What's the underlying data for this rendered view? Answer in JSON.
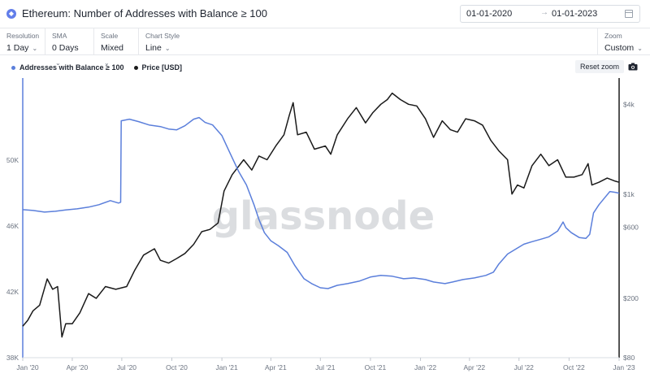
{
  "header": {
    "icon": "ethereum-icon",
    "title": "Ethereum: Number of Addresses with Balance ≥ 100",
    "date_start": "01-01-2020",
    "date_arrow": "→",
    "date_end": "01-01-2023"
  },
  "toolbar": {
    "resolution": {
      "label": "Resolution",
      "value": "1 Day"
    },
    "sma": {
      "label": "SMA",
      "value": "0 Days"
    },
    "scale": {
      "label": "Scale",
      "value": "Mixed"
    },
    "chart_style": {
      "label": "Chart Style",
      "value": "Line"
    },
    "zoom": {
      "label": "Zoom",
      "value": "Custom"
    }
  },
  "legend": {
    "addresses": "Addresses with Balance ≥ 100",
    "price": "Price [USD]"
  },
  "reset_zoom": "Reset zoom",
  "watermark": "glassnode",
  "colors": {
    "addresses": "#5b7fdb",
    "price": "#1a1a1a"
  },
  "chart_data": {
    "type": "line",
    "x_ticks": [
      "Jan '20",
      "Apr '20",
      "Jul '20",
      "Oct '20",
      "Jan '21",
      "Apr '21",
      "Jul '21",
      "Oct '21",
      "Jan '22",
      "Apr '22",
      "Jul '22",
      "Oct '22",
      "Jan '23"
    ],
    "x_range": [
      "2020-01-01",
      "2023-01-01"
    ],
    "y_left": {
      "scale": "linear",
      "range": [
        38000,
        55000
      ],
      "ticks": [
        "38K",
        "42K",
        "46K",
        "50K"
      ],
      "tick_values": [
        38000,
        42000,
        46000,
        50000
      ]
    },
    "y_right": {
      "scale": "log",
      "range": [
        80,
        6000
      ],
      "ticks": [
        "$80",
        "$200",
        "$600",
        "$1k",
        "$4k"
      ],
      "tick_values": [
        80,
        200,
        600,
        1000,
        4000
      ]
    },
    "series": [
      {
        "name": "Addresses with Balance ≥ 100",
        "axis": "left",
        "points": [
          [
            "2020-01-01",
            47000
          ],
          [
            "2020-01-20",
            46950
          ],
          [
            "2020-02-10",
            46850
          ],
          [
            "2020-03-01",
            46900
          ],
          [
            "2020-03-20",
            46980
          ],
          [
            "2020-04-10",
            47050
          ],
          [
            "2020-05-01",
            47150
          ],
          [
            "2020-05-20",
            47300
          ],
          [
            "2020-06-10",
            47550
          ],
          [
            "2020-06-25",
            47400
          ],
          [
            "2020-06-29",
            47450
          ],
          [
            "2020-06-30",
            52400
          ],
          [
            "2020-07-15",
            52500
          ],
          [
            "2020-08-01",
            52350
          ],
          [
            "2020-08-20",
            52150
          ],
          [
            "2020-09-10",
            52050
          ],
          [
            "2020-09-25",
            51900
          ],
          [
            "2020-10-10",
            51850
          ],
          [
            "2020-10-25",
            52100
          ],
          [
            "2020-11-10",
            52500
          ],
          [
            "2020-11-20",
            52600
          ],
          [
            "2020-12-01",
            52300
          ],
          [
            "2020-12-15",
            52150
          ],
          [
            "2021-01-01",
            51500
          ],
          [
            "2021-01-15",
            50500
          ],
          [
            "2021-02-01",
            49300
          ],
          [
            "2021-02-15",
            48500
          ],
          [
            "2021-03-01",
            47300
          ],
          [
            "2021-03-10",
            46400
          ],
          [
            "2021-03-20",
            45600
          ],
          [
            "2021-04-01",
            45100
          ],
          [
            "2021-04-15",
            44800
          ],
          [
            "2021-05-01",
            44400
          ],
          [
            "2021-05-15",
            43600
          ],
          [
            "2021-06-01",
            42800
          ],
          [
            "2021-06-15",
            42500
          ],
          [
            "2021-07-01",
            42250
          ],
          [
            "2021-07-15",
            42200
          ],
          [
            "2021-08-01",
            42400
          ],
          [
            "2021-08-20",
            42500
          ],
          [
            "2021-09-10",
            42650
          ],
          [
            "2021-10-01",
            42900
          ],
          [
            "2021-10-20",
            43000
          ],
          [
            "2021-11-10",
            42950
          ],
          [
            "2021-12-01",
            42800
          ],
          [
            "2021-12-20",
            42850
          ],
          [
            "2022-01-10",
            42750
          ],
          [
            "2022-01-25",
            42600
          ],
          [
            "2022-02-15",
            42500
          ],
          [
            "2022-03-01",
            42600
          ],
          [
            "2022-03-20",
            42750
          ],
          [
            "2022-04-10",
            42850
          ],
          [
            "2022-05-01",
            43000
          ],
          [
            "2022-05-15",
            43200
          ],
          [
            "2022-05-25",
            43700
          ],
          [
            "2022-06-10",
            44300
          ],
          [
            "2022-06-25",
            44600
          ],
          [
            "2022-07-10",
            44900
          ],
          [
            "2022-07-25",
            45050
          ],
          [
            "2022-08-10",
            45200
          ],
          [
            "2022-08-25",
            45350
          ],
          [
            "2022-09-10",
            45700
          ],
          [
            "2022-09-20",
            46250
          ],
          [
            "2022-09-25",
            45900
          ],
          [
            "2022-10-05",
            45600
          ],
          [
            "2022-10-20",
            45300
          ],
          [
            "2022-11-01",
            45250
          ],
          [
            "2022-11-08",
            45500
          ],
          [
            "2022-11-15",
            46800
          ],
          [
            "2022-11-25",
            47300
          ],
          [
            "2022-12-05",
            47700
          ],
          [
            "2022-12-15",
            48100
          ],
          [
            "2022-12-25",
            48050
          ],
          [
            "2023-01-01",
            48000
          ]
        ]
      },
      {
        "name": "Price [USD]",
        "axis": "right",
        "points": [
          [
            "2020-01-01",
            130
          ],
          [
            "2020-01-10",
            142
          ],
          [
            "2020-01-20",
            165
          ],
          [
            "2020-02-01",
            180
          ],
          [
            "2020-02-15",
            270
          ],
          [
            "2020-02-25",
            230
          ],
          [
            "2020-03-05",
            240
          ],
          [
            "2020-03-13",
            110
          ],
          [
            "2020-03-20",
            135
          ],
          [
            "2020-04-01",
            135
          ],
          [
            "2020-04-15",
            160
          ],
          [
            "2020-05-01",
            215
          ],
          [
            "2020-05-15",
            200
          ],
          [
            "2020-06-01",
            240
          ],
          [
            "2020-06-20",
            230
          ],
          [
            "2020-07-10",
            240
          ],
          [
            "2020-07-25",
            310
          ],
          [
            "2020-08-10",
            390
          ],
          [
            "2020-08-30",
            430
          ],
          [
            "2020-09-10",
            360
          ],
          [
            "2020-09-25",
            345
          ],
          [
            "2020-10-10",
            370
          ],
          [
            "2020-10-25",
            400
          ],
          [
            "2020-11-10",
            460
          ],
          [
            "2020-11-25",
            560
          ],
          [
            "2020-12-10",
            580
          ],
          [
            "2020-12-25",
            640
          ],
          [
            "2021-01-05",
            1050
          ],
          [
            "2021-01-20",
            1350
          ],
          [
            "2021-02-10",
            1700
          ],
          [
            "2021-02-25",
            1450
          ],
          [
            "2021-03-10",
            1800
          ],
          [
            "2021-03-25",
            1700
          ],
          [
            "2021-04-10",
            2100
          ],
          [
            "2021-04-25",
            2500
          ],
          [
            "2021-05-05",
            3400
          ],
          [
            "2021-05-12",
            4100
          ],
          [
            "2021-05-20",
            2500
          ],
          [
            "2021-06-05",
            2600
          ],
          [
            "2021-06-20",
            2000
          ],
          [
            "2021-07-10",
            2100
          ],
          [
            "2021-07-20",
            1850
          ],
          [
            "2021-08-01",
            2500
          ],
          [
            "2021-08-20",
            3200
          ],
          [
            "2021-09-05",
            3800
          ],
          [
            "2021-09-22",
            3000
          ],
          [
            "2021-10-05",
            3500
          ],
          [
            "2021-10-20",
            4000
          ],
          [
            "2021-11-01",
            4300
          ],
          [
            "2021-11-10",
            4750
          ],
          [
            "2021-11-25",
            4300
          ],
          [
            "2021-12-10",
            4000
          ],
          [
            "2021-12-25",
            3900
          ],
          [
            "2022-01-10",
            3200
          ],
          [
            "2022-01-25",
            2400
          ],
          [
            "2022-02-10",
            3100
          ],
          [
            "2022-02-25",
            2700
          ],
          [
            "2022-03-10",
            2600
          ],
          [
            "2022-03-25",
            3200
          ],
          [
            "2022-04-10",
            3100
          ],
          [
            "2022-04-25",
            2900
          ],
          [
            "2022-05-10",
            2300
          ],
          [
            "2022-05-25",
            1950
          ],
          [
            "2022-06-10",
            1700
          ],
          [
            "2022-06-18",
            1000
          ],
          [
            "2022-06-28",
            1150
          ],
          [
            "2022-07-10",
            1100
          ],
          [
            "2022-07-25",
            1550
          ],
          [
            "2022-08-10",
            1850
          ],
          [
            "2022-08-25",
            1550
          ],
          [
            "2022-09-10",
            1700
          ],
          [
            "2022-09-25",
            1300
          ],
          [
            "2022-10-10",
            1300
          ],
          [
            "2022-10-25",
            1350
          ],
          [
            "2022-11-05",
            1600
          ],
          [
            "2022-11-12",
            1150
          ],
          [
            "2022-11-25",
            1200
          ],
          [
            "2022-12-10",
            1280
          ],
          [
            "2022-12-25",
            1220
          ],
          [
            "2023-01-01",
            1200
          ]
        ]
      }
    ]
  }
}
